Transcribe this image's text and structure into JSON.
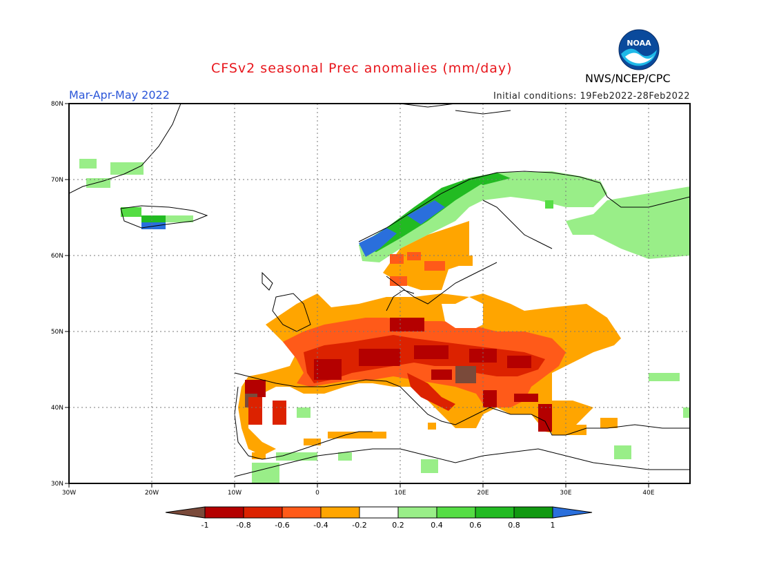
{
  "header": {
    "title": "CFSv2 seasonal Prec anomalies (mm/day)",
    "period": "Mar-Apr-May 2022",
    "initial_conditions": "Initial conditions: 19Feb2022-28Feb2022",
    "agency": "NWS/NCEP/CPC",
    "logo_text": "NOAA"
  },
  "map": {
    "region": "Europe",
    "lon_range": [
      -30,
      45
    ],
    "lat_range": [
      30,
      80
    ],
    "grid": true,
    "lat_labels": [
      "80N",
      "70N",
      "60N",
      "50N",
      "40N",
      "30N"
    ],
    "lon_labels": [
      "30W",
      "20W",
      "10W",
      "0",
      "10E",
      "20E",
      "30E",
      "40E"
    ]
  },
  "colorbar": {
    "tick_labels": [
      "-1",
      "-0.8",
      "-0.6",
      "-0.4",
      "-0.2",
      "0.2",
      "0.4",
      "0.6",
      "0.8",
      "1"
    ],
    "colors": [
      "#7a4a3a",
      "#b40000",
      "#dc2200",
      "#ff5a19",
      "#ffa500",
      "#ffffff",
      "#99ee88",
      "#55dd44",
      "#22bb22",
      "#119911",
      "#2a6fdc"
    ]
  }
}
